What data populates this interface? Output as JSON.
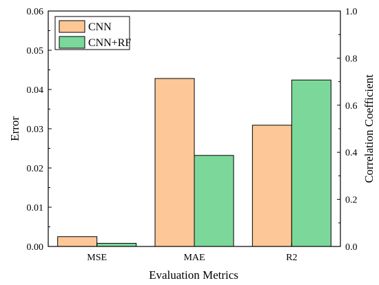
{
  "chart_data": {
    "type": "bar",
    "categories": [
      "MSE",
      "MAE",
      "R2"
    ],
    "series": [
      {
        "name": "CNN",
        "color": "#FDC798",
        "values": [
          0.0025,
          0.0428,
          0.515
        ],
        "axis": [
          "left",
          "left",
          "right"
        ]
      },
      {
        "name": "CNN+RF",
        "color": "#7BD89A",
        "values": [
          0.0008,
          0.0232,
          0.707
        ],
        "axis": [
          "left",
          "left",
          "right"
        ]
      }
    ],
    "xlabel": "Evaluation Metrics",
    "ylabel": "Error",
    "ylabel_right": "Correlation Coefficient",
    "ylim": [
      0,
      0.06
    ],
    "ylim_right": [
      0,
      1.0
    ],
    "yticks": [
      "0.00",
      "0.01",
      "0.02",
      "0.03",
      "0.04",
      "0.05",
      "0.06"
    ],
    "yticks_right": [
      "0.0",
      "0.2",
      "0.4",
      "0.6",
      "0.8",
      "1.0"
    ],
    "legend_position": "top-left",
    "grid": false
  }
}
